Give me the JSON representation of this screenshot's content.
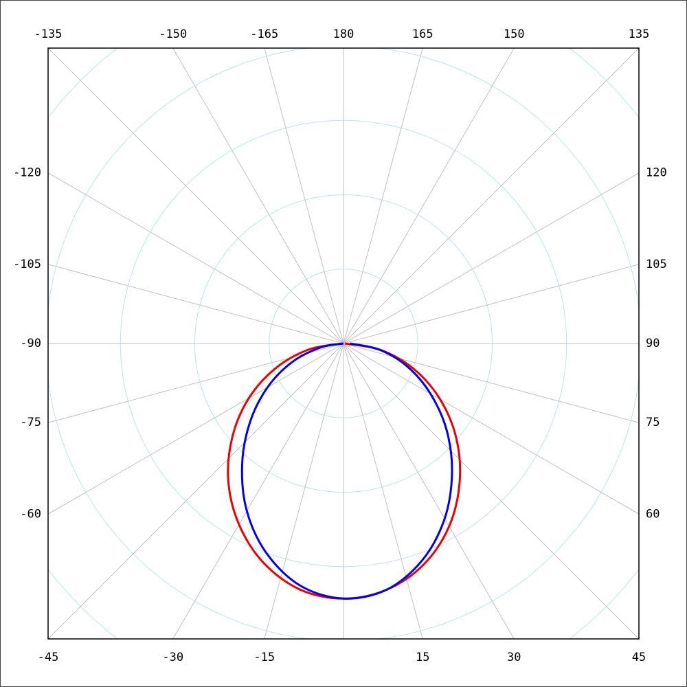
{
  "chart_data": {
    "type": "polar",
    "theta": [
      -90,
      -80,
      -70,
      -60,
      -50,
      -40,
      -30,
      -20,
      -10,
      0,
      10,
      20,
      30,
      40,
      50,
      60,
      70,
      80,
      90
    ],
    "series": [
      {
        "color": "#ee0000",
        "values": [
          2,
          48,
          97,
          147,
          195,
          241,
          281,
          314,
          336,
          343,
          336,
          316,
          284,
          243,
          198,
          150,
          101,
          51,
          2
        ]
      },
      {
        "color": "#0000ee",
        "values": [
          0,
          32,
          74,
          118,
          164,
          212,
          260,
          301,
          331,
          343,
          336,
          310,
          272,
          227,
          181,
          135,
          92,
          50,
          9
        ]
      }
    ],
    "rlim": [
      0,
      400
    ],
    "rticks": [
      100,
      200,
      300,
      400,
      500
    ],
    "thetaticks": [
      -165,
      -150,
      -135,
      -120,
      -105,
      -90,
      -75,
      -60,
      -45,
      -30,
      -15,
      {
        "value": 0,
        "label": null
      },
      15,
      30,
      45,
      60,
      75,
      90,
      105,
      120,
      135,
      150,
      165,
      180
    ],
    "grid": true,
    "grid_color": "#c0c0c0",
    "ring_color": "#bde3ee"
  }
}
